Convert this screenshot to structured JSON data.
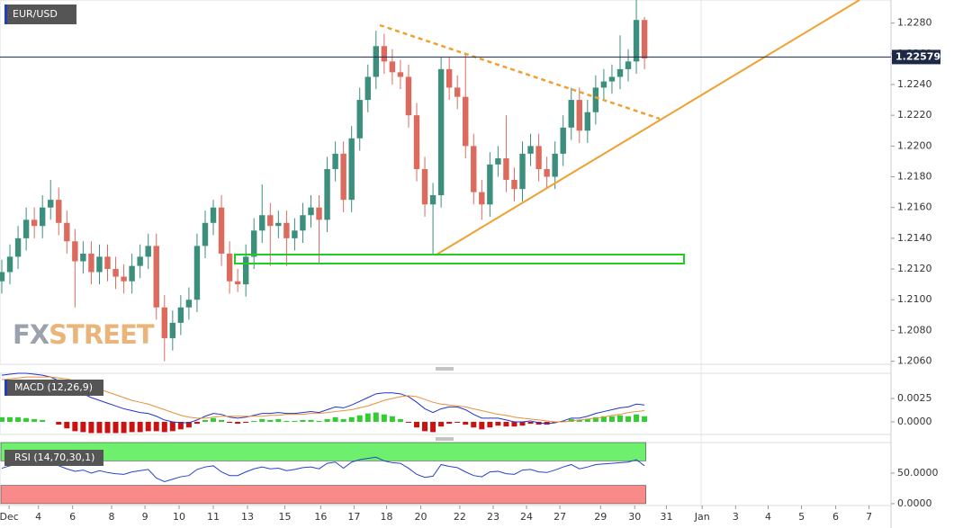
{
  "chart_data": [
    {
      "type": "candlestick",
      "title": "EUR/USD",
      "logo": {
        "prefix": "FX",
        "suffix": "STREET"
      },
      "up_color": "#3b8f7c",
      "down_color": "#dc6b5e",
      "last_price": 1.22579,
      "xlim": [
        -0.22,
        109.3
      ],
      "xticks": [
        {
          "value": 0.9,
          "label": "Dec"
        },
        {
          "value": 4.5,
          "label": "4"
        },
        {
          "value": 8.7,
          "label": "6"
        },
        {
          "value": 13.5,
          "label": "8"
        },
        {
          "value": 17.6,
          "label": "9"
        },
        {
          "value": 21.8,
          "label": "10"
        },
        {
          "value": 26,
          "label": "11"
        },
        {
          "value": 30.2,
          "label": "13"
        },
        {
          "value": 34.8,
          "label": "15"
        },
        {
          "value": 39.2,
          "label": "16"
        },
        {
          "value": 43.3,
          "label": "17"
        },
        {
          "value": 47.3,
          "label": "18"
        },
        {
          "value": 51.5,
          "label": "20"
        },
        {
          "value": 56.3,
          "label": "22"
        },
        {
          "value": 60.4,
          "label": "23"
        },
        {
          "value": 64.5,
          "label": "24"
        },
        {
          "value": 68.6,
          "label": "27"
        },
        {
          "value": 73.6,
          "label": "29"
        },
        {
          "value": 77.8,
          "label": "30"
        },
        {
          "value": 81.7,
          "label": "31"
        },
        {
          "value": 86.1,
          "label": "Jan"
        },
        {
          "value": 90.2,
          "label": "3"
        },
        {
          "value": 94.2,
          "label": "4"
        },
        {
          "value": 98.3,
          "label": "5"
        },
        {
          "value": 102.5,
          "label": "6"
        },
        {
          "value": 106.6,
          "label": "7"
        }
      ],
      "ylim": [
        1.2058,
        1.2295
      ],
      "yticks": [
        {
          "value": 1.206,
          "label": "1.2060"
        },
        {
          "value": 1.208,
          "label": "1.2080"
        },
        {
          "value": 1.21,
          "label": "1.2100"
        },
        {
          "value": 1.212,
          "label": "1.2120"
        },
        {
          "value": 1.214,
          "label": "1.2140"
        },
        {
          "value": 1.216,
          "label": "1.2160"
        },
        {
          "value": 1.218,
          "label": "1.2180"
        },
        {
          "value": 1.22,
          "label": "1.2200"
        },
        {
          "value": 1.222,
          "label": "1.2220"
        },
        {
          "value": 1.224,
          "label": "1.2240"
        },
        {
          "value": 1.226,
          "label": "1.2260"
        },
        {
          "value": 1.228,
          "label": "1.2280"
        }
      ],
      "open": [
        1.2112,
        1.2118,
        1.2128,
        1.214,
        1.2152,
        1.2148,
        1.216,
        1.2165,
        1.215,
        1.2138,
        1.2125,
        1.213,
        1.2118,
        1.2128,
        1.212,
        1.2115,
        1.2112,
        1.2122,
        1.2128,
        1.2135,
        1.2095,
        1.2075,
        1.2085,
        1.2095,
        1.21,
        1.2135,
        1.215,
        1.216,
        1.213,
        1.2112,
        1.211,
        1.2128,
        1.2145,
        1.2155,
        1.2148,
        1.215,
        1.214,
        1.2145,
        1.2155,
        1.216,
        1.2152,
        1.2185,
        1.2195,
        1.2165,
        1.2205,
        1.223,
        1.2245,
        1.2265,
        1.2255,
        1.2248,
        1.2245,
        1.222,
        1.2185,
        1.2162,
        1.2168,
        1.225,
        1.2238,
        1.2232,
        1.22,
        1.217,
        1.2162,
        1.2188,
        1.2192,
        1.2178,
        1.2172,
        1.2195,
        1.22,
        1.2185,
        1.218,
        1.2195,
        1.2212,
        1.223,
        1.221,
        1.2222,
        1.2238,
        1.2242,
        1.2245,
        1.225,
        1.2255,
        1.2282
      ],
      "high": [
        1.2126,
        1.2136,
        1.2148,
        1.216,
        1.216,
        1.2168,
        1.2178,
        1.2173,
        1.2158,
        1.2146,
        1.2138,
        1.2138,
        1.2136,
        1.2136,
        1.2128,
        1.2123,
        1.213,
        1.2136,
        1.2143,
        1.2143,
        1.2103,
        1.2093,
        1.2103,
        1.2108,
        1.2143,
        1.2158,
        1.2165,
        1.2168,
        1.2138,
        1.212,
        1.2136,
        1.2153,
        1.2175,
        1.2163,
        1.2158,
        1.2158,
        1.2153,
        1.2163,
        1.2168,
        1.2168,
        1.2193,
        1.2203,
        1.2203,
        1.2213,
        1.2238,
        1.2253,
        1.2275,
        1.2273,
        1.2263,
        1.2256,
        1.2253,
        1.2228,
        1.2193,
        1.2176,
        1.2258,
        1.2258,
        1.2246,
        1.226,
        1.2208,
        1.2178,
        1.2196,
        1.22,
        1.222,
        1.2186,
        1.2203,
        1.2208,
        1.2208,
        1.2193,
        1.2203,
        1.222,
        1.2238,
        1.2238,
        1.223,
        1.2246,
        1.225,
        1.2253,
        1.2272,
        1.2263,
        1.2295,
        1.2284
      ],
      "low": [
        1.2104,
        1.211,
        1.212,
        1.2132,
        1.214,
        1.214,
        1.2152,
        1.2142,
        1.213,
        1.2095,
        1.2117,
        1.211,
        1.211,
        1.2112,
        1.2107,
        1.2104,
        1.2104,
        1.2114,
        1.212,
        1.2087,
        1.206,
        1.2067,
        1.2077,
        1.2087,
        1.2092,
        1.2127,
        1.2142,
        1.2122,
        1.2104,
        1.2105,
        1.2102,
        1.212,
        1.2137,
        1.2122,
        1.214,
        1.2122,
        1.2132,
        1.2137,
        1.2147,
        1.2124,
        1.2144,
        1.2177,
        1.2157,
        1.2157,
        1.2197,
        1.2222,
        1.2237,
        1.2247,
        1.224,
        1.2237,
        1.2212,
        1.2177,
        1.2154,
        1.213,
        1.216,
        1.223,
        1.2224,
        1.2192,
        1.2162,
        1.2152,
        1.2154,
        1.218,
        1.217,
        1.2164,
        1.2164,
        1.2187,
        1.2177,
        1.2172,
        1.2172,
        1.2187,
        1.2204,
        1.2202,
        1.2202,
        1.2214,
        1.223,
        1.2234,
        1.2237,
        1.2242,
        1.2247,
        1.225
      ],
      "close": [
        1.2118,
        1.2128,
        1.214,
        1.2152,
        1.2148,
        1.216,
        1.2165,
        1.215,
        1.2138,
        1.2125,
        1.213,
        1.2118,
        1.2128,
        1.212,
        1.2115,
        1.2112,
        1.2122,
        1.2128,
        1.2135,
        1.2095,
        1.2075,
        1.2085,
        1.2095,
        1.21,
        1.2135,
        1.215,
        1.216,
        1.213,
        1.2112,
        1.211,
        1.2128,
        1.2145,
        1.2155,
        1.2148,
        1.215,
        1.214,
        1.2145,
        1.2155,
        1.216,
        1.2152,
        1.2185,
        1.2195,
        1.2165,
        1.2205,
        1.223,
        1.2245,
        1.2265,
        1.2255,
        1.2248,
        1.2245,
        1.222,
        1.2185,
        1.2162,
        1.2168,
        1.225,
        1.2238,
        1.2232,
        1.22,
        1.217,
        1.2162,
        1.2188,
        1.2192,
        1.2178,
        1.2172,
        1.2195,
        1.22,
        1.2185,
        1.218,
        1.2195,
        1.2212,
        1.223,
        1.221,
        1.2222,
        1.2238,
        1.2242,
        1.2245,
        1.225,
        1.2255,
        1.2282,
        1.2257
      ]
    },
    {
      "type": "macd",
      "title": "MACD (12,26,9)",
      "ylim": [
        -0.00135,
        0.0052
      ],
      "yticks": [
        {
          "value": 0,
          "label": "0.0000"
        },
        {
          "value": 0.0025,
          "label": "0.0025"
        }
      ],
      "series": [
        {
          "type": "bar",
          "color": "#33cc33",
          "negative_color": "#cc1111",
          "values": [
            0.0005,
            0.0005,
            0.0005,
            0.0004,
            0.0003,
            0.0002,
            0.0,
            -0.0003,
            -0.0007,
            -0.001,
            -0.0011,
            -0.0012,
            -0.0012,
            -0.0012,
            -0.0012,
            -0.0012,
            -0.0011,
            -0.0011,
            -0.001,
            -0.001,
            -0.0011,
            -0.001,
            -0.0008,
            -0.0006,
            -0.0002,
            0.0002,
            0.0004,
            0.0002,
            -0.0001,
            -0.0002,
            -0.0001,
            0.0001,
            0.0003,
            0.0002,
            0.0003,
            0.0001,
            0.0001,
            0.0002,
            0.0002,
            0.0001,
            0.0003,
            0.0005,
            0.0003,
            0.0005,
            0.0007,
            0.0009,
            0.001,
            0.0008,
            0.0006,
            0.0003,
            -0.0001,
            -0.0006,
            -0.001,
            -0.0011,
            -0.0005,
            -0.0002,
            -0.0001,
            -0.0003,
            -0.0006,
            -0.0008,
            -0.0006,
            -0.0004,
            -0.0005,
            -0.0005,
            -0.0004,
            -0.0002,
            -0.0003,
            -0.0003,
            -0.0001,
            0.0001,
            0.0003,
            0.0002,
            0.0003,
            0.0005,
            0.0006,
            0.0006,
            0.0007,
            0.0006,
            0.0008,
            0.0006
          ]
        },
        {
          "type": "line",
          "color": "#2233cc",
          "values": [
            0.005,
            0.0051,
            0.0052,
            0.0052,
            0.0051,
            0.005,
            0.0048,
            0.0044,
            0.0039,
            0.0034,
            0.003,
            0.0026,
            0.0023,
            0.002,
            0.0017,
            0.0014,
            0.0012,
            0.001,
            0.0009,
            0.0006,
            0.0002,
            0.0,
            -0.0001,
            -0.0001,
            0.0002,
            0.0006,
            0.0009,
            0.0008,
            0.0005,
            0.0004,
            0.0005,
            0.0007,
            0.0009,
            0.0009,
            0.001,
            0.0009,
            0.0009,
            0.001,
            0.0011,
            0.001,
            0.0013,
            0.0016,
            0.0015,
            0.0018,
            0.0022,
            0.0026,
            0.003,
            0.0031,
            0.0031,
            0.003,
            0.0027,
            0.0021,
            0.0014,
            0.001,
            0.0014,
            0.0016,
            0.0016,
            0.0013,
            0.0008,
            0.0004,
            0.0004,
            0.0004,
            0.0002,
            0.0,
            0.0,
            0.0001,
            -0.0001,
            -0.0002,
            -0.0001,
            0.0001,
            0.0004,
            0.0004,
            0.0006,
            0.0009,
            0.0011,
            0.0013,
            0.0015,
            0.0016,
            0.0019,
            0.0018
          ]
        },
        {
          "type": "line",
          "color": "#e8903a",
          "values": [
            0.0045,
            0.0046,
            0.0047,
            0.0048,
            0.0048,
            0.0048,
            0.0048,
            0.0047,
            0.0046,
            0.0044,
            0.0041,
            0.0038,
            0.0035,
            0.0032,
            0.0029,
            0.0026,
            0.0023,
            0.0021,
            0.0019,
            0.0016,
            0.0013,
            0.001,
            0.0007,
            0.0005,
            0.0004,
            0.0004,
            0.0005,
            0.0006,
            0.0006,
            0.0006,
            0.0006,
            0.0006,
            0.0006,
            0.0007,
            0.0007,
            0.0008,
            0.0008,
            0.0008,
            0.0009,
            0.0009,
            0.001,
            0.0011,
            0.0012,
            0.0013,
            0.0015,
            0.0017,
            0.002,
            0.0023,
            0.0025,
            0.0027,
            0.0028,
            0.0027,
            0.0024,
            0.0021,
            0.0019,
            0.0018,
            0.0017,
            0.0016,
            0.0014,
            0.0012,
            0.001,
            0.0008,
            0.0007,
            0.0005,
            0.0004,
            0.0003,
            0.0002,
            0.0001,
            0.0,
            0.0,
            0.0001,
            0.0002,
            0.0003,
            0.0004,
            0.0005,
            0.0007,
            0.0008,
            0.001,
            0.0011,
            0.0012
          ]
        }
      ]
    },
    {
      "type": "rsi",
      "title": "RSI (14,70,30,1)",
      "ylim": [
        -3,
        100
      ],
      "yticks": [
        {
          "value": 0,
          "label": "0.0000"
        },
        {
          "value": 50,
          "label": "50.0000"
        }
      ],
      "zones": [
        {
          "from": 70,
          "to": 100,
          "color": "#6ef06e"
        },
        {
          "from": 0,
          "to": 30,
          "color": "#f88a8a"
        }
      ],
      "series": [
        {
          "type": "line",
          "color": "#2244cc",
          "values": [
            58,
            62,
            65,
            66,
            64,
            67,
            68,
            62,
            57,
            53,
            55,
            50,
            54,
            51,
            49,
            48,
            52,
            54,
            56,
            42,
            36,
            40,
            44,
            46,
            56,
            60,
            62,
            52,
            46,
            46,
            52,
            57,
            60,
            57,
            58,
            54,
            56,
            59,
            60,
            57,
            66,
            68,
            58,
            68,
            72,
            74,
            76,
            70,
            67,
            66,
            58,
            48,
            43,
            45,
            64,
            61,
            59,
            52,
            46,
            44,
            52,
            53,
            49,
            48,
            55,
            56,
            52,
            51,
            55,
            60,
            64,
            57,
            60,
            64,
            65,
            66,
            67,
            68,
            72,
            62
          ]
        }
      ]
    }
  ]
}
